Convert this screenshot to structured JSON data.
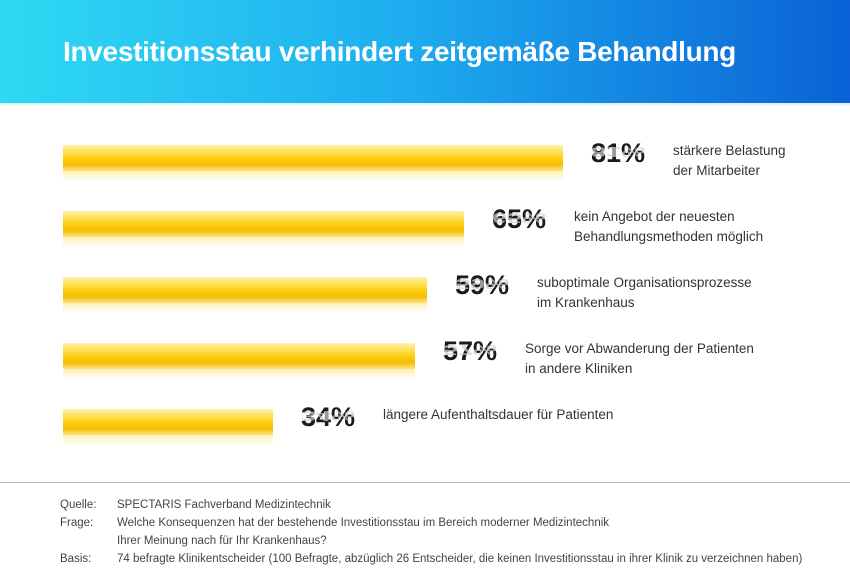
{
  "header": {
    "title": "Investitionsstau verhindert zeitgemäße Behandlung"
  },
  "chart_data": {
    "type": "bar",
    "orientation": "horizontal",
    "title": "Investitionsstau verhindert zeitgemäße Behandlung",
    "categories": [
      "stärkere Belastung der Mitarbeiter",
      "kein Angebot der neuesten Behandlungsmethoden möglich",
      "suboptimale Organisationsprozesse im Krankenhaus",
      "Sorge vor Abwanderung der Patienten in andere Kliniken",
      "längere Aufenthaltsdauer für Patienten"
    ],
    "label_lines": [
      [
        "stärkere Belastung",
        "der Mitarbeiter"
      ],
      [
        "kein Angebot der neuesten",
        "Behandlungsmethoden möglich"
      ],
      [
        "suboptimale Organisationsprozesse",
        "im Krankenhaus"
      ],
      [
        "Sorge vor Abwanderung der Patienten",
        "in andere Kliniken"
      ],
      [
        "längere Aufenthaltsdauer für Patienten"
      ]
    ],
    "values": [
      81,
      65,
      59,
      57,
      34
    ],
    "value_labels": [
      "81%",
      "65%",
      "59%",
      "57%",
      "34%"
    ],
    "unit": "%",
    "xlim": [
      0,
      100
    ],
    "grid": false,
    "colors": {
      "bar": "#ffd21f",
      "header_start": "#2fd9f2",
      "header_end": "#0a62d6"
    }
  },
  "footer": {
    "rows": [
      {
        "key": "Quelle:",
        "value": "SPECTARIS Fachverband Medizintechnik"
      },
      {
        "key": "Frage:",
        "value": "Welche Konsequenzen hat der bestehende Investitionsstau im Bereich moderner Medizintechnik"
      },
      {
        "key": "",
        "value": "Ihrer Meinung nach für Ihr Krankenhaus?"
      },
      {
        "key": "Basis:",
        "value": "74 befragte Klinikentscheider (100 Befragte, abzüglich 26 Entscheider, die keinen Investitionsstau in ihrer Klinik zu verzeichnen haben)"
      }
    ]
  }
}
